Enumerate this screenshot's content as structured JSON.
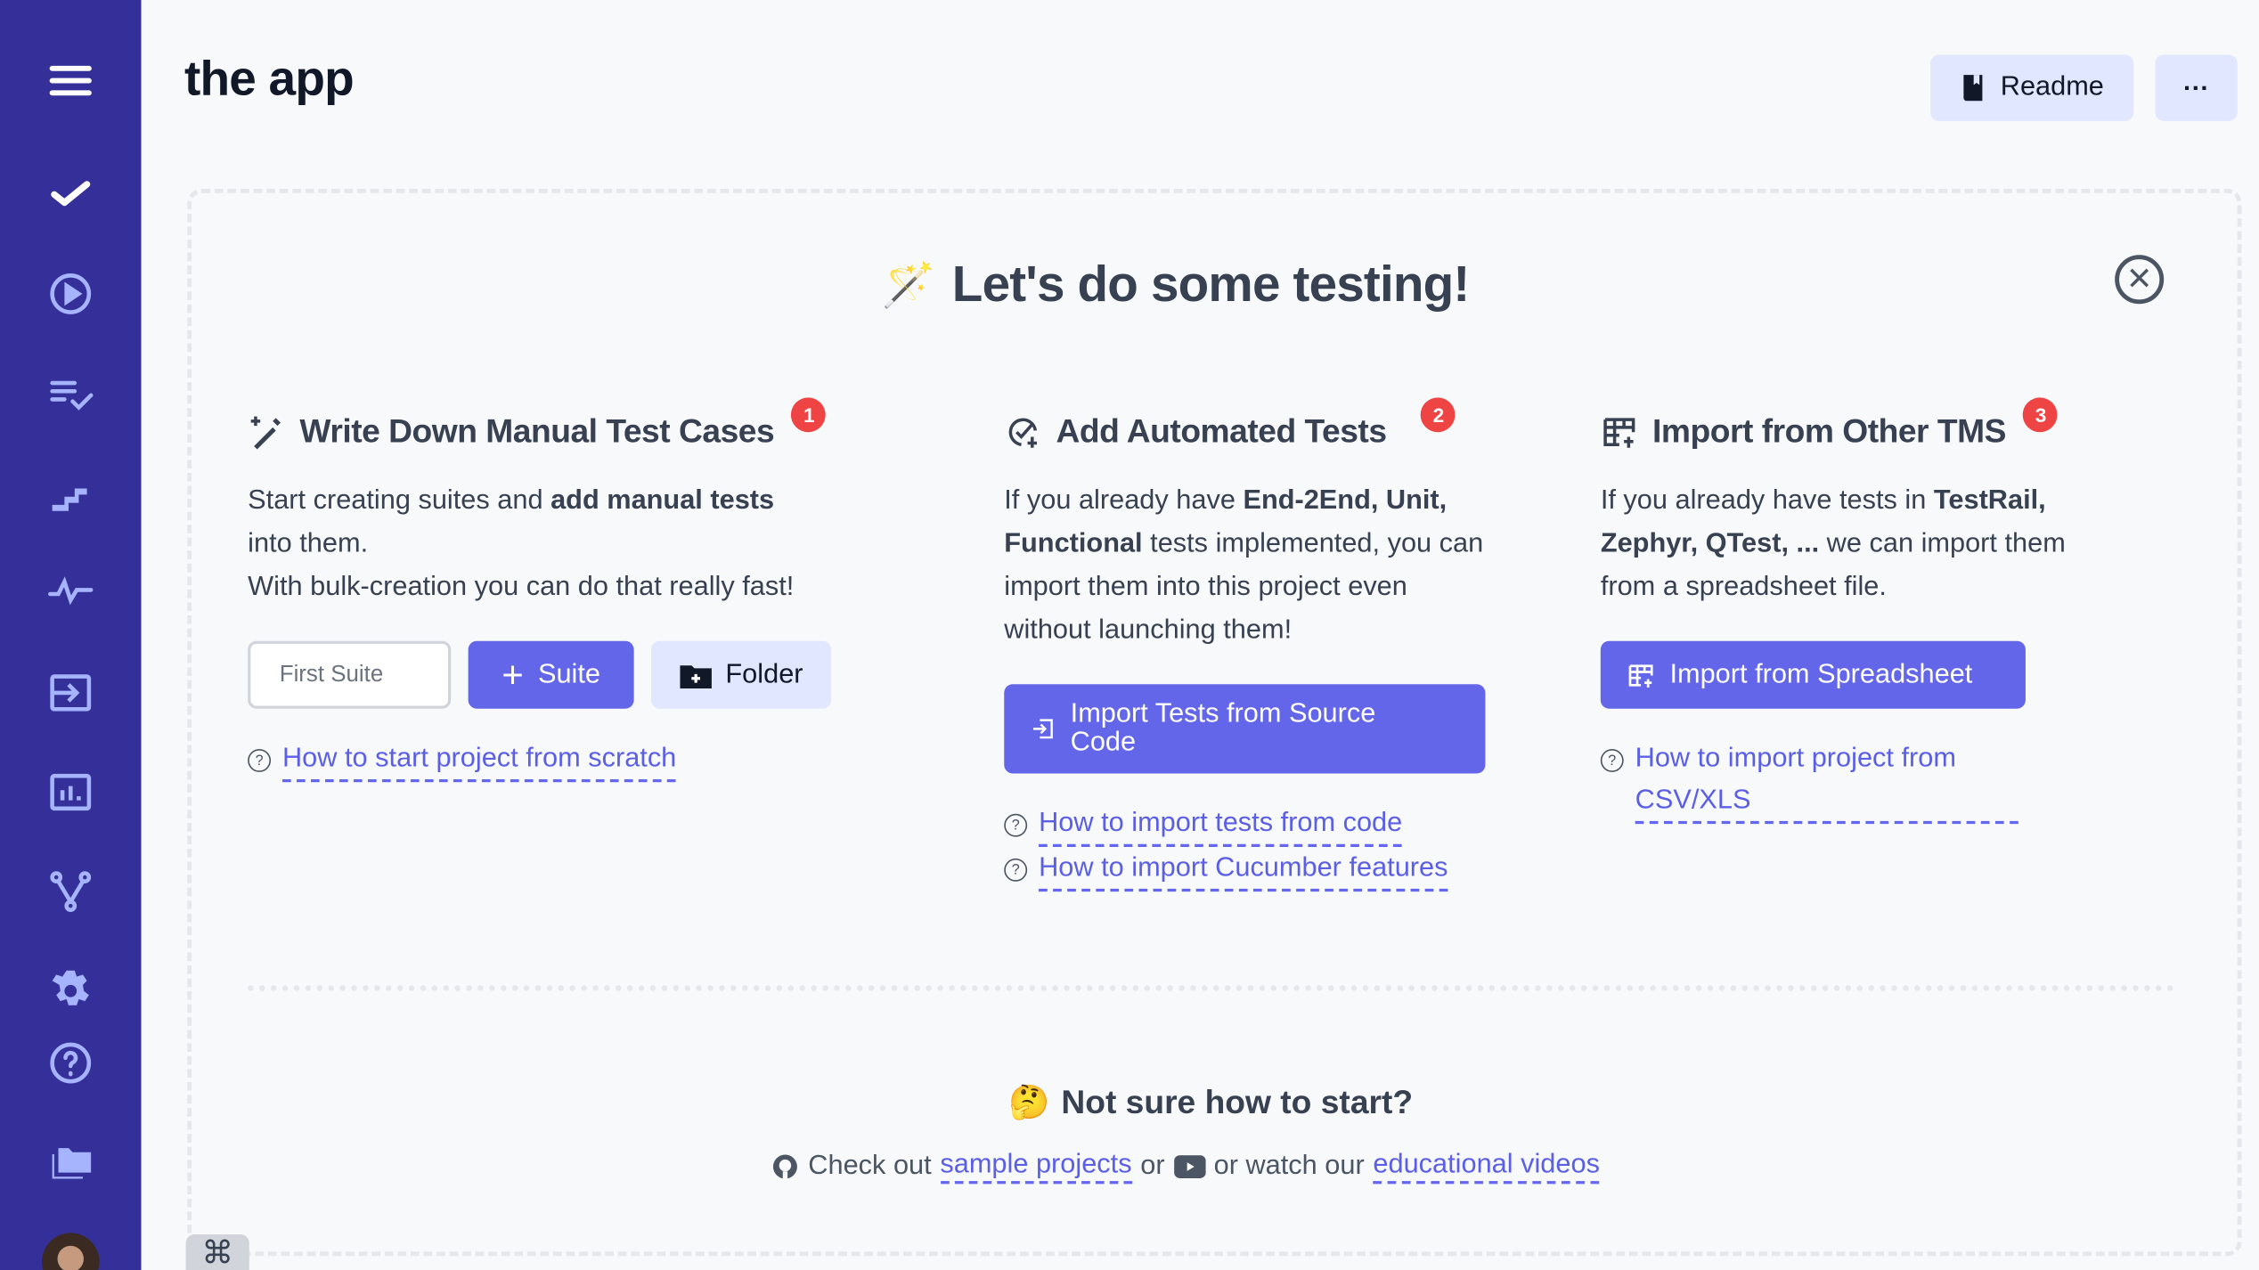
{
  "app": {
    "title": "the app"
  },
  "header": {
    "readme_label": "Readme",
    "more_label": "···"
  },
  "sidebar": {
    "items": [
      "menu",
      "tests",
      "runs",
      "plans",
      "steps",
      "analytics",
      "import",
      "reports",
      "branches",
      "settings",
      "help",
      "projects"
    ]
  },
  "hero": {
    "emoji": "🪄",
    "title": "Let's do some testing!"
  },
  "columns": {
    "manual": {
      "badge": "1",
      "title": "Write Down Manual Test Cases",
      "text1": "Start creating suites and ",
      "bold1": "add manual tests",
      "text2": " into them.",
      "text3": "With bulk-creation you can do that really fast!",
      "input_placeholder": "First Suite",
      "suite_label": "Suite",
      "folder_label": "Folder",
      "link1": "How to start project from scratch"
    },
    "automated": {
      "badge": "2",
      "title": "Add Automated Tests",
      "text1": "If you already have ",
      "bold1": "End-2End, Unit, Functional",
      "text2": " tests implemented, you can import them into this project even without launching them!",
      "button_label": "Import Tests from Source Code",
      "link1": "How to import tests from code",
      "link2": "How to import Cucumber features"
    },
    "tms": {
      "badge": "3",
      "title": "Import from Other TMS",
      "text1": "If you already have tests in ",
      "bold1": "TestRail, Zephyr, QTest, ...",
      "text2": " we can import them from a spreadsheet file.",
      "button_label": "Import from Spreadsheet",
      "link1": "How to import project from CSV/XLS"
    }
  },
  "footer": {
    "emoji": "🤔",
    "title": "Not sure how to start?",
    "check_out": "Check out",
    "sample_projects": "sample projects",
    "or": "or",
    "watch": "or watch our",
    "educational_videos": "educational videos",
    "cmd_symbol": "⌘"
  },
  "colors": {
    "sidebar": "#352f99",
    "primary": "#6366e9",
    "badge": "#ef4444",
    "secondary": "#e0e7ff"
  }
}
